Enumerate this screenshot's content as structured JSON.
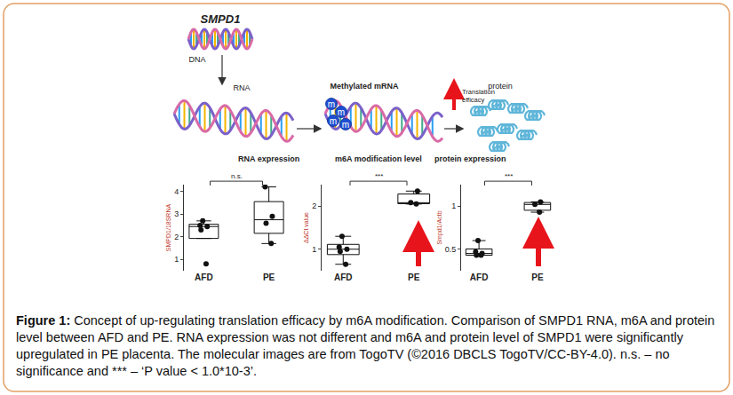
{
  "diagram": {
    "gene": "SMPD1",
    "stages": [
      {
        "label": "DNA"
      },
      {
        "label": "RNA"
      },
      {
        "label": "Methylated mRNA",
        "mark": "m"
      },
      {
        "label": "protein"
      }
    ],
    "effect": [
      "Translation",
      "efficacy"
    ]
  },
  "chart_data": [
    {
      "type": "box",
      "title": "RNA expression",
      "y_label": "SMPD1/18SRNA",
      "categories": [
        "AFD",
        "PE"
      ],
      "values": [
        [
          2.7,
          2.5,
          2.45,
          2.3,
          0.8
        ],
        [
          4.2,
          2.9,
          2.6,
          1.7
        ]
      ],
      "ylim": [
        0.5,
        4.3
      ],
      "yticks": [
        1,
        2,
        3,
        4
      ],
      "grid": false,
      "annotations": [
        {
          "text": "n.s."
        }
      ]
    },
    {
      "type": "box",
      "title": "m6A modification level",
      "y_label": "ΔΔCt value",
      "categories": [
        "AFD",
        "PE"
      ],
      "values": [
        [
          1.3,
          1.05,
          1.0,
          0.95,
          0.65
        ],
        [
          2.35,
          2.08,
          2.05
        ]
      ],
      "ylim": [
        0.5,
        2.5
      ],
      "yticks": [
        1,
        2
      ],
      "grid": false,
      "annotations": [
        {
          "text": "***"
        }
      ]
    },
    {
      "type": "box",
      "title": "protein expression",
      "y_label": "Smpd1/Actb",
      "categories": [
        "AFD",
        "PE"
      ],
      "values": [
        [
          0.6,
          0.47,
          0.45,
          0.43,
          0.43
        ],
        [
          1.05,
          1.02,
          0.93
        ]
      ],
      "ylim": [
        0.25,
        1.25
      ],
      "yticks": [
        0.5,
        1
      ],
      "grid": false,
      "annotations": [
        {
          "text": "***"
        }
      ]
    }
  ],
  "caption": {
    "label": "Figure 1:",
    "text": "Concept of up-regulating translation efficacy by m6A modification. Comparison of SMPD1 RNA, m6A and protein level between AFD and PE. RNA expression was not different and m6A and protein level of SMPD1 were significantly upregulated in PE placenta. The molecular images are from TogoTV (©2016 DBCLS TogoTV/CC-BY-4.0). n.s. – no significance and *** – ‘P value < 1.0*10-3’."
  }
}
